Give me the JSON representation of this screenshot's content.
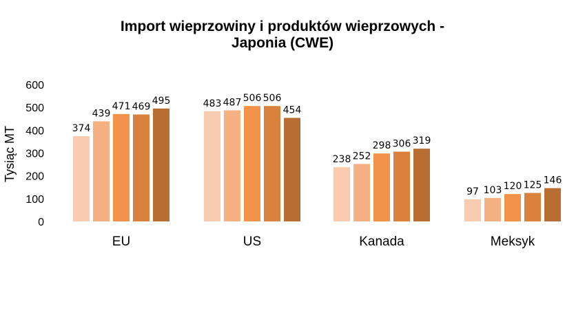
{
  "chart_data": {
    "type": "bar",
    "title_lines": [
      "Import wieprzowiny i produktów wieprzowych -",
      "Japonia (CWE)"
    ],
    "xlabel": "",
    "ylabel": "Tysiąc MT",
    "ylim": [
      0,
      600
    ],
    "yticks": [
      0,
      100,
      200,
      300,
      400,
      500,
      600
    ],
    "grid": false,
    "legend": "none",
    "categories": [
      "EU",
      "US",
      "Kanada",
      "Meksyk"
    ],
    "series": [
      {
        "values": [
          374,
          483,
          238,
          97
        ],
        "color": "#f9ccb1"
      },
      {
        "values": [
          439,
          487,
          252,
          103
        ],
        "color": "#f6b183"
      },
      {
        "values": [
          471,
          506,
          298,
          120
        ],
        "color": "#f39349"
      },
      {
        "values": [
          469,
          506,
          306,
          125
        ],
        "color": "#d9823e"
      },
      {
        "values": [
          495,
          454,
          319,
          146
        ],
        "color": "#b86e32"
      }
    ]
  }
}
